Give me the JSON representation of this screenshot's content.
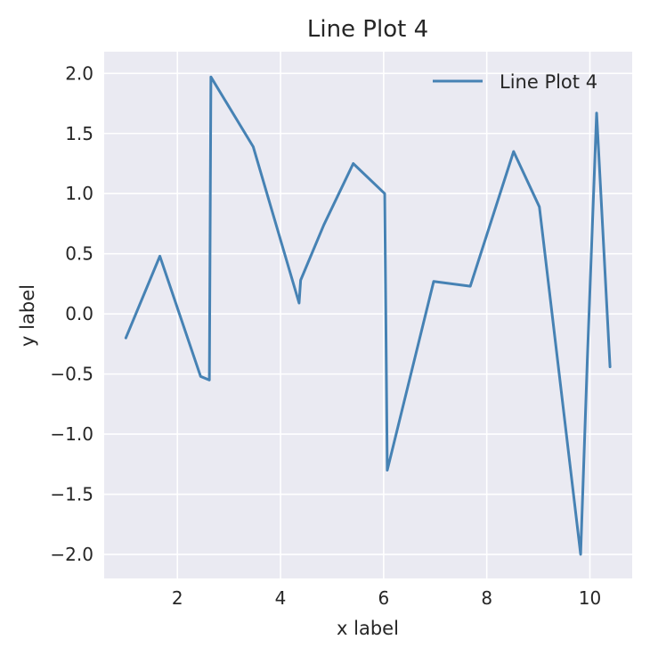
{
  "chart_data": {
    "type": "line",
    "title": "Line Plot 4",
    "xlabel": "x label",
    "ylabel": "y label",
    "xlim": [
      0.58,
      10.82
    ],
    "ylim": [
      -2.2,
      2.18
    ],
    "xticks": [
      2,
      4,
      6,
      8,
      10
    ],
    "yticks": [
      -2.0,
      -1.5,
      -1.0,
      -0.5,
      0.0,
      0.5,
      1.0,
      1.5,
      2.0
    ],
    "xtick_labels": [
      "2",
      "4",
      "6",
      "8",
      "10"
    ],
    "ytick_labels": [
      "−2.0",
      "−1.5",
      "−1.0",
      "−0.5",
      "0.0",
      "0.5",
      "1.0",
      "1.5",
      "2.0"
    ],
    "grid": true,
    "legend_position": "top-right",
    "series": [
      {
        "name": "Line Plot 4",
        "color": "#4682b4",
        "x": [
          1.0,
          1.66,
          2.45,
          2.62,
          2.65,
          3.47,
          4.36,
          4.39,
          4.84,
          5.41,
          6.02,
          6.07,
          6.97,
          7.68,
          8.52,
          9.02,
          9.82,
          9.95,
          10.13,
          10.39
        ],
        "y": [
          -0.2,
          0.48,
          -0.52,
          -0.55,
          1.97,
          1.39,
          0.09,
          0.28,
          0.74,
          1.25,
          1.0,
          -1.3,
          0.27,
          0.23,
          1.35,
          0.89,
          -2.0,
          -0.38,
          1.67,
          -0.44
        ]
      }
    ]
  }
}
